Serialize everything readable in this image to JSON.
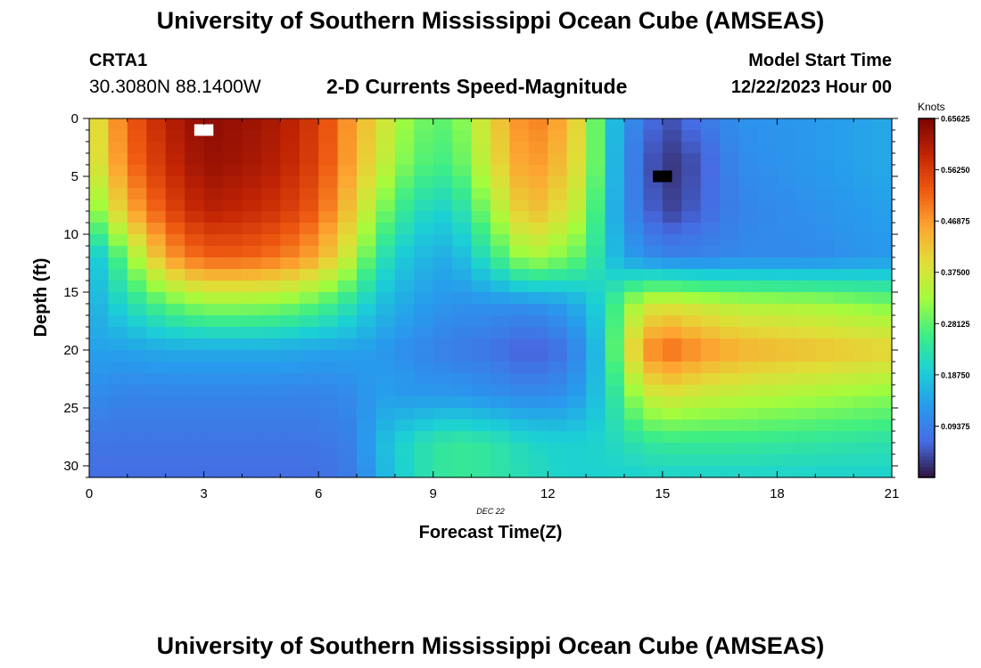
{
  "header": {
    "title": "University of Southern Mississippi Ocean Cube (AMSEAS)",
    "station": "CRTA1",
    "coords": "30.3080N  88.1400W",
    "subtitle": "2-D Currents Speed-Magnitude",
    "model_label": "Model Start Time",
    "model_time": "12/22/2023 Hour 00",
    "footer_title": "University of Southern Mississippi Ocean Cube (AMSEAS)"
  },
  "chart_data": {
    "type": "heatmap",
    "title": "2-D Currents Speed-Magnitude",
    "xlabel": "Forecast Time(Z)",
    "ylabel": "Depth (ft)",
    "date_label": "DEC 22",
    "xlim": [
      0,
      21
    ],
    "ylim": [
      0,
      31
    ],
    "y_inverted": true,
    "xticks": [
      0,
      3,
      6,
      9,
      12,
      15,
      18,
      21
    ],
    "yticks": [
      0,
      5,
      10,
      15,
      20,
      25,
      30
    ],
    "colorbar": {
      "unit": "Knots",
      "min": 0.0,
      "max": 0.65625,
      "ticks": [
        0.09375,
        0.1875,
        0.28125,
        0.375,
        0.46875,
        0.5625,
        0.65625
      ],
      "tick_labels": [
        "0.09375",
        "0.18750",
        "0.28125",
        "0.37500",
        "0.46875",
        "0.56250",
        "0.65625"
      ]
    },
    "hour_step": 0.5,
    "depth_step": 1,
    "depth_profiles_ft": [
      0,
      4,
      8,
      12,
      16,
      20,
      24,
      28,
      31
    ],
    "speed_knots_by_hour": [
      {
        "hour": 0,
        "speeds": [
          0.36,
          0.35,
          0.28,
          0.16,
          0.15,
          0.14,
          0.11,
          0.08,
          0.07
        ]
      },
      {
        "hour": 1,
        "speeds": [
          0.52,
          0.5,
          0.44,
          0.3,
          0.22,
          0.14,
          0.1,
          0.08,
          0.07
        ]
      },
      {
        "hour": 2,
        "speeds": [
          0.6,
          0.58,
          0.54,
          0.46,
          0.28,
          0.15,
          0.1,
          0.08,
          0.07
        ]
      },
      {
        "hour": 3,
        "speeds": [
          0.64,
          0.63,
          0.6,
          0.52,
          0.32,
          0.15,
          0.1,
          0.08,
          0.07
        ]
      },
      {
        "hour": 4,
        "speeds": [
          0.63,
          0.62,
          0.59,
          0.52,
          0.32,
          0.15,
          0.1,
          0.08,
          0.07
        ]
      },
      {
        "hour": 5,
        "speeds": [
          0.61,
          0.6,
          0.57,
          0.5,
          0.31,
          0.15,
          0.1,
          0.08,
          0.07
        ]
      },
      {
        "hour": 6,
        "speeds": [
          0.56,
          0.55,
          0.52,
          0.45,
          0.28,
          0.14,
          0.1,
          0.08,
          0.07
        ]
      },
      {
        "hour": 7,
        "speeds": [
          0.45,
          0.44,
          0.4,
          0.34,
          0.22,
          0.14,
          0.11,
          0.1,
          0.09
        ]
      },
      {
        "hour": 7.5,
        "speeds": [
          0.4,
          0.38,
          0.32,
          0.24,
          0.18,
          0.13,
          0.14,
          0.16,
          0.15
        ]
      },
      {
        "hour": 8.5,
        "speeds": [
          0.3,
          0.28,
          0.22,
          0.17,
          0.14,
          0.11,
          0.13,
          0.22,
          0.22
        ]
      },
      {
        "hour": 9.5,
        "speeds": [
          0.28,
          0.26,
          0.2,
          0.15,
          0.12,
          0.09,
          0.13,
          0.25,
          0.25
        ]
      },
      {
        "hour": 10.5,
        "speeds": [
          0.4,
          0.38,
          0.32,
          0.24,
          0.12,
          0.08,
          0.12,
          0.24,
          0.24
        ]
      },
      {
        "hour": 11.5,
        "speeds": [
          0.5,
          0.48,
          0.44,
          0.34,
          0.12,
          0.05,
          0.11,
          0.21,
          0.22
        ]
      },
      {
        "hour": 12.5,
        "speeds": [
          0.45,
          0.42,
          0.38,
          0.3,
          0.14,
          0.08,
          0.12,
          0.2,
          0.2
        ]
      },
      {
        "hour": 13,
        "speeds": [
          0.36,
          0.36,
          0.33,
          0.27,
          0.17,
          0.13,
          0.15,
          0.2,
          0.2
        ]
      },
      {
        "hour": 13.5,
        "speeds": [
          0.22,
          0.22,
          0.2,
          0.2,
          0.22,
          0.2,
          0.2,
          0.21,
          0.2
        ]
      },
      {
        "hour": 14,
        "speeds": [
          0.12,
          0.11,
          0.11,
          0.14,
          0.3,
          0.36,
          0.28,
          0.22,
          0.2
        ]
      },
      {
        "hour": 14.5,
        "speeds": [
          0.09,
          0.07,
          0.08,
          0.12,
          0.36,
          0.46,
          0.35,
          0.24,
          0.2
        ]
      },
      {
        "hour": 15,
        "speeds": [
          0.04,
          0.02,
          0.03,
          0.1,
          0.38,
          0.52,
          0.38,
          0.25,
          0.2
        ]
      },
      {
        "hour": 16,
        "speeds": [
          0.08,
          0.05,
          0.06,
          0.1,
          0.36,
          0.48,
          0.36,
          0.25,
          0.2
        ]
      },
      {
        "hour": 17,
        "speeds": [
          0.12,
          0.11,
          0.1,
          0.11,
          0.34,
          0.45,
          0.35,
          0.25,
          0.2
        ]
      },
      {
        "hour": 19,
        "speeds": [
          0.13,
          0.13,
          0.12,
          0.11,
          0.33,
          0.43,
          0.33,
          0.24,
          0.2
        ]
      },
      {
        "hour": 21,
        "speeds": [
          0.15,
          0.15,
          0.14,
          0.13,
          0.3,
          0.41,
          0.31,
          0.23,
          0.2
        ]
      }
    ],
    "markers": [
      {
        "hour": 3,
        "depth_ft": 1,
        "color": "#ffffff"
      },
      {
        "hour": 15,
        "depth_ft": 5,
        "color": "#000000"
      }
    ]
  }
}
